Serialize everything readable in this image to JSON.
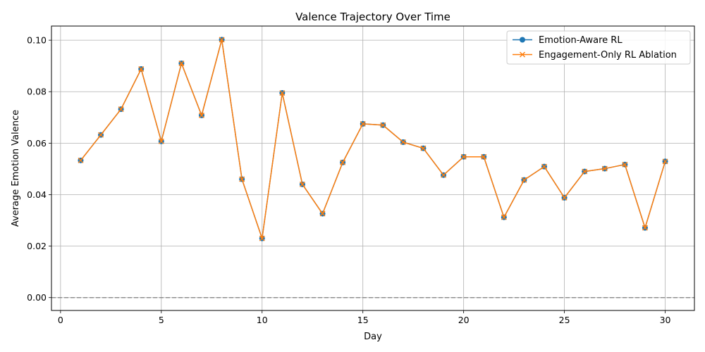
{
  "chart_data": {
    "type": "line",
    "title": "Valence Trajectory Over Time",
    "xlabel": "Day",
    "ylabel": "Average Emotion Valence",
    "xlim": [
      -0.45,
      31.45
    ],
    "ylim": [
      -0.005,
      0.1055
    ],
    "xticks": [
      0,
      5,
      10,
      15,
      20,
      25,
      30
    ],
    "yticks": [
      0.0,
      0.02,
      0.04,
      0.06,
      0.08,
      0.1
    ],
    "ytick_labels": [
      "0.00",
      "0.02",
      "0.04",
      "0.06",
      "0.08",
      "0.10"
    ],
    "grid": true,
    "legend_position": "top-right",
    "reference_line": {
      "y": 0,
      "style": "dashed",
      "color": "#808080"
    },
    "x": [
      1,
      2,
      3,
      4,
      5,
      6,
      7,
      8,
      9,
      10,
      11,
      12,
      13,
      14,
      15,
      16,
      17,
      18,
      19,
      20,
      21,
      22,
      23,
      24,
      25,
      26,
      27,
      28,
      29,
      30
    ],
    "series": [
      {
        "name": "Emotion-Aware RL",
        "color": "#1f77b4",
        "marker": "circle",
        "values": [
          0.0533,
          0.0632,
          0.0732,
          0.0888,
          0.0607,
          0.091,
          0.0708,
          0.1002,
          0.046,
          0.023,
          0.0795,
          0.044,
          0.0326,
          0.0525,
          0.0675,
          0.067,
          0.0604,
          0.058,
          0.0476,
          0.0547,
          0.0547,
          0.0312,
          0.0457,
          0.0509,
          0.0388,
          0.049,
          0.0501,
          0.0517,
          0.0271,
          0.0529
        ]
      },
      {
        "name": "Engagement-Only RL Ablation",
        "color": "#ff7f0e",
        "marker": "x",
        "values": [
          0.0533,
          0.0632,
          0.0732,
          0.0888,
          0.0607,
          0.091,
          0.0708,
          0.1002,
          0.046,
          0.023,
          0.0795,
          0.044,
          0.0326,
          0.0525,
          0.0675,
          0.067,
          0.0604,
          0.058,
          0.0476,
          0.0547,
          0.0547,
          0.0312,
          0.0457,
          0.0509,
          0.0388,
          0.049,
          0.0501,
          0.0517,
          0.0271,
          0.0529
        ]
      }
    ]
  }
}
